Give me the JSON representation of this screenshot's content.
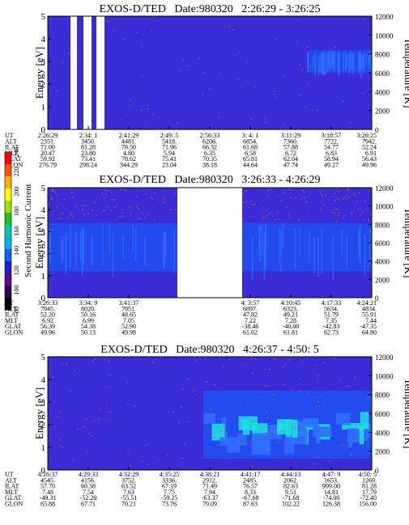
{
  "chart_data": [
    {
      "type": "heatmap",
      "title": "EXOS-D/TED   Date:980320   2:26:29 - 3:26:25",
      "ylabel": "Energy [eV]",
      "ylabel_right": "Temperature [K]",
      "ylim": [
        0,
        5
      ],
      "yticks": [
        "0",
        "1",
        "2",
        "3",
        "4",
        "5"
      ],
      "ylim_right": [
        0,
        12000
      ],
      "yticks_right": [
        "0",
        "2000",
        "4000",
        "6000",
        "8000",
        "10000",
        "12000"
      ],
      "data_gaps": [
        [
          0.07,
          0.09
        ],
        [
          0.11,
          0.135
        ],
        [
          0.15,
          0.175
        ]
      ],
      "enhanced_band": {
        "x_range": [
          0.8,
          1.0
        ],
        "energy_range": [
          2.5,
          3.5
        ],
        "level": "mid"
      },
      "noise_band": {
        "energy_range": [
          0,
          5
        ],
        "density": "low"
      },
      "ut_ticks": {
        "UT": [
          "2:26:29",
          "2:34: 1",
          "2:41:29",
          "2:49: 5",
          "2:56:33",
          "3: 4: 1",
          "3:11:29",
          "3:18:57",
          "3:26:25"
        ],
        "ALT": [
          "2351.",
          "3450.",
          "4481.",
          "5418.",
          "6206.",
          "6854.",
          "7360.",
          "7722.",
          "7942."
        ],
        "ILAT": [
          "71.00",
          "81.28",
          "78.50",
          "71.96",
          "66.32",
          "61.68",
          "57.88",
          "54.77",
          "52.24"
        ],
        "MLT": [
          "20.47",
          "23.80",
          "4.80",
          "5.94",
          "6.35",
          "6.58",
          "6.72",
          "6.83",
          "6.91"
        ],
        "GLAT": [
          "59.92",
          "73.41",
          "78.62",
          "75.41",
          "70.35",
          "65.81",
          "62.04",
          "58.94",
          "56.43"
        ],
        "GLON": [
          "276.79",
          "298.24",
          "344.29",
          "23.04",
          "38.18",
          "44.64",
          "47.74",
          "49.27",
          "49.96"
        ]
      }
    },
    {
      "type": "heatmap",
      "title": "EXOS-D/TED   Date:980320   3:26:33 - 4:26:29",
      "ylabel": "Energy [eV]",
      "ylabel_right": "Temperature [K]",
      "ylim": [
        0,
        5
      ],
      "yticks": [
        "0",
        "1",
        "2",
        "3",
        "4",
        "5"
      ],
      "ylim_right": [
        0,
        12000
      ],
      "yticks_right": [
        "0",
        "2000",
        "4000",
        "6000",
        "8000",
        "10000",
        "12000"
      ],
      "data_gaps": [
        [
          0.4,
          0.6
        ]
      ],
      "enhanced_band": {
        "x_range": [
          0.0,
          1.0
        ],
        "energy_range": [
          1.2,
          3.4
        ],
        "level": "mid"
      },
      "noise_band": {
        "energy_range": [
          3.5,
          5
        ],
        "density": "high"
      },
      "ut_ticks": {
        "UT": [
          "3:26:33",
          "3:34: 9",
          "3:41:37",
          "4: 3:57",
          "4:10:45",
          "4:17:33",
          "4:24:21"
        ],
        "ALT": [
          "7945.",
          "8020.",
          "7951.",
          "6897.",
          "6323.",
          "5634.",
          "4834."
        ],
        "ILAT": [
          "52.20",
          "50.16",
          "48.65",
          "47.82",
          "49.21",
          "51.79",
          "55.91"
        ],
        "MLT": [
          "6.92",
          "6.99",
          "7.05",
          "7.22",
          "7.28",
          "7.35",
          "7.44"
        ],
        "GLAT": [
          "56.39",
          "54.38",
          "52.90",
          "-38.46",
          "-40.00",
          "-42.83",
          "-47.35"
        ],
        "GLON": [
          "49.96",
          "50.13",
          "49.98",
          "61.62",
          "61.81",
          "62.73",
          "64.80"
        ]
      },
      "ut_tick_positions": [
        0.0,
        0.125,
        0.25,
        0.625,
        0.75,
        0.875,
        1.0
      ]
    },
    {
      "type": "heatmap",
      "title": "EXOS-D/TED   Date:980320   4:26:37 - 4:50: 5",
      "ylabel": "Energy [eV]",
      "ylabel_right": "Temperature [K]",
      "ylim": [
        0,
        5
      ],
      "yticks": [
        "0",
        "1",
        "2",
        "3",
        "4",
        "5"
      ],
      "ylim_right": [
        0,
        12000
      ],
      "yticks_right": [
        "0",
        "2000",
        "4000",
        "6000",
        "8000",
        "10000",
        "12000"
      ],
      "data_gaps": [],
      "enhanced_band": {
        "x_range": [
          0.48,
          1.0
        ],
        "energy_range": [
          0.5,
          3.5
        ],
        "level": "high"
      },
      "noise_band": {
        "energy_range": [
          0,
          5
        ],
        "density": "medium"
      },
      "ut_ticks": {
        "UT": [
          "4:26:37",
          "4:29:33",
          "4:32:29",
          "4:35:25",
          "4:38:21",
          "4:41:17",
          "4:44:13",
          "4:47: 9",
          "4:50: 5"
        ],
        "ALT": [
          "4545.",
          "4156.",
          "3752.",
          "3336.",
          "2912.",
          "2485.",
          "2062.",
          "1653.",
          "1269."
        ],
        "ILAT": [
          "57.70",
          "60.38",
          "63.52",
          "67.19",
          "71.49",
          "76.57",
          "82.63",
          "999.00",
          "81.28"
        ],
        "MLT": [
          "7.48",
          "7.54",
          "7.63",
          "7.75",
          "7.94",
          "8.33",
          "9.51",
          "14.81",
          "17.79"
        ],
        "GLAT": [
          "-49.31",
          "-52.20",
          "-55.51",
          "-59.25",
          "-63.37",
          "-67.68",
          "-71.68",
          "-74.00",
          "-72.40"
        ],
        "GLON": [
          "65.88",
          "67.71",
          "70.21",
          "73.76",
          "79.09",
          "87.63",
          "102.22",
          "126.38",
          "156.00"
        ]
      }
    }
  ],
  "colorbar": {
    "label": "Second Harmonic Current",
    "ticks": [
      "80",
      "100",
      "120",
      "140",
      "160",
      "180",
      "200",
      "220",
      "240"
    ],
    "colors": [
      "#000000",
      "#3a0050",
      "#5a0a90",
      "#2020c8",
      "#1060ff",
      "#00b0f0",
      "#00c8a0",
      "#20c020",
      "#a0e000",
      "#ffff00",
      "#ffb000",
      "#ff5000",
      "#ff0000"
    ]
  },
  "colors": {
    "background": "#3a2dd8",
    "band_low": "#2050f0",
    "band_mid": "#3070ff",
    "band_high": "#20e0e0",
    "noise": "#c05050"
  }
}
